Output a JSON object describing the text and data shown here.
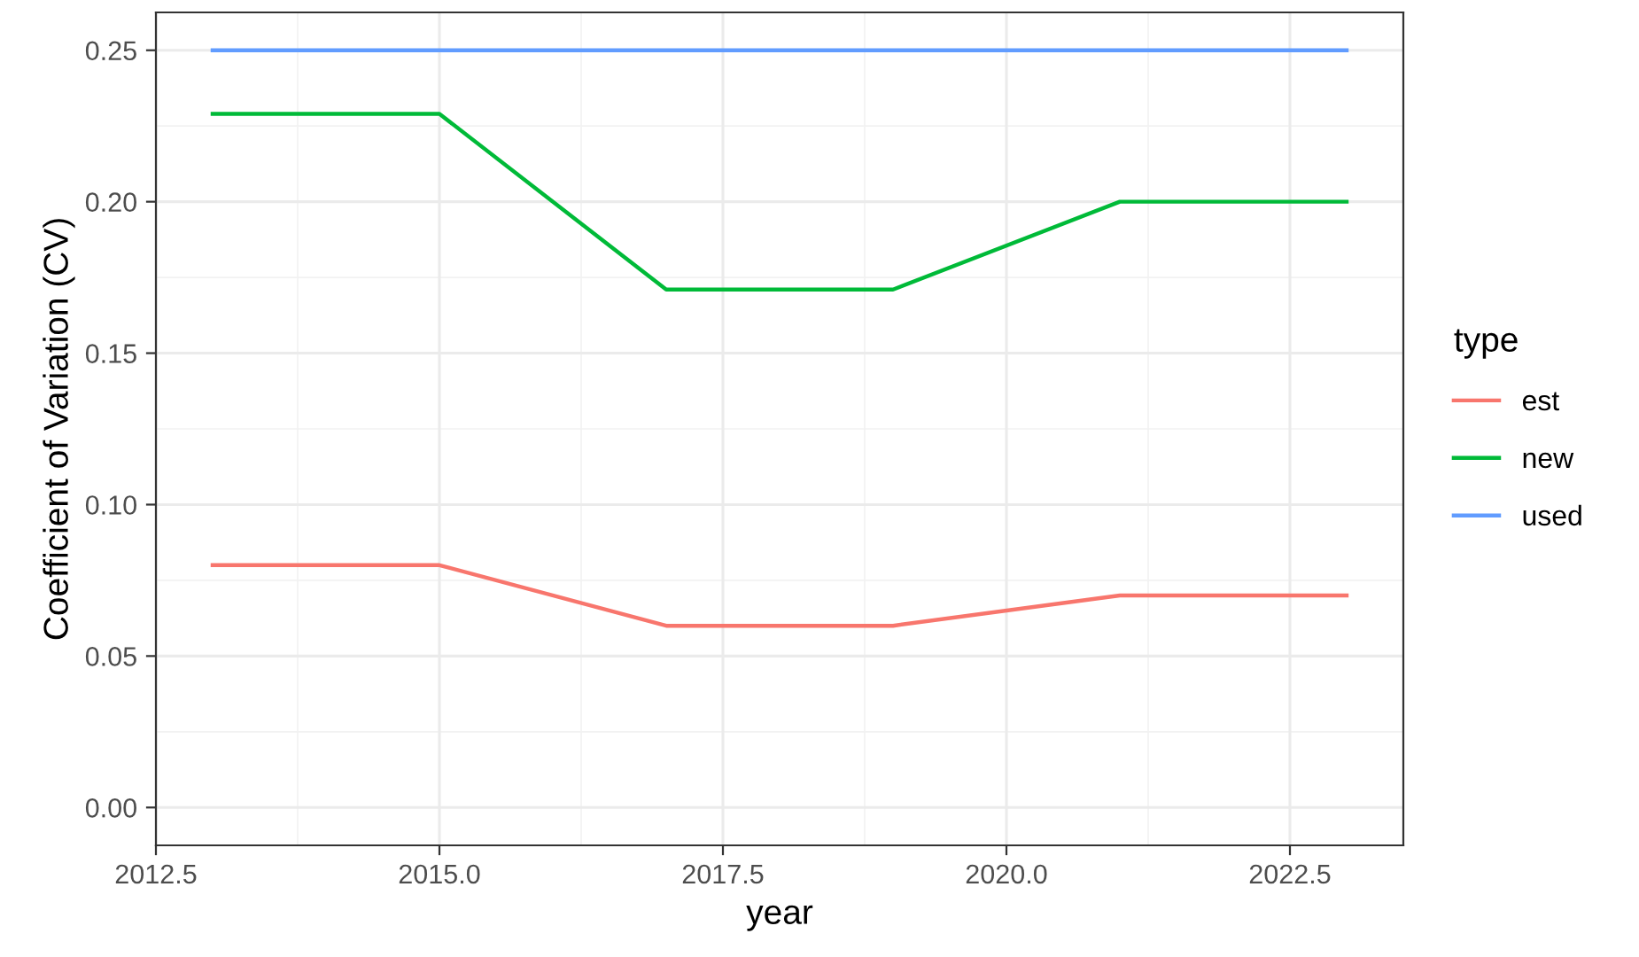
{
  "chart_data": {
    "type": "line",
    "xlabel": "year",
    "ylabel": "Coefficient of Variation (CV)",
    "legend_title": "type",
    "x": [
      2013,
      2015,
      2017,
      2019,
      2021,
      2023
    ],
    "series": [
      {
        "name": "est",
        "color": "#f8766d",
        "values": [
          0.08,
          0.08,
          0.06,
          0.06,
          0.07,
          0.07
        ]
      },
      {
        "name": "new",
        "color": "#00ba38",
        "values": [
          0.229,
          0.229,
          0.171,
          0.171,
          0.2,
          0.2
        ]
      },
      {
        "name": "used",
        "color": "#619cff",
        "values": [
          0.25,
          0.25,
          0.25,
          0.25,
          0.25,
          0.25
        ]
      }
    ],
    "xlim": [
      2012.5,
      2023.5
    ],
    "xticks": [
      {
        "value": 2012.5,
        "label": "2012.5"
      },
      {
        "value": 2015,
        "label": "2015.0"
      },
      {
        "value": 2017.5,
        "label": "2017.5"
      },
      {
        "value": 2020,
        "label": "2020.0"
      },
      {
        "value": 2022.5,
        "label": "2022.5"
      }
    ],
    "ylim": [
      -0.0125,
      0.2625
    ],
    "yticks": [
      {
        "value": 0,
        "label": "0.00"
      },
      {
        "value": 0.05,
        "label": "0.05"
      },
      {
        "value": 0.1,
        "label": "0.10"
      },
      {
        "value": 0.15,
        "label": "0.15"
      },
      {
        "value": 0.2,
        "label": "0.20"
      },
      {
        "value": 0.25,
        "label": "0.25"
      }
    ],
    "grid": true,
    "legend": "right",
    "line_style": "solid",
    "marker": "none"
  }
}
